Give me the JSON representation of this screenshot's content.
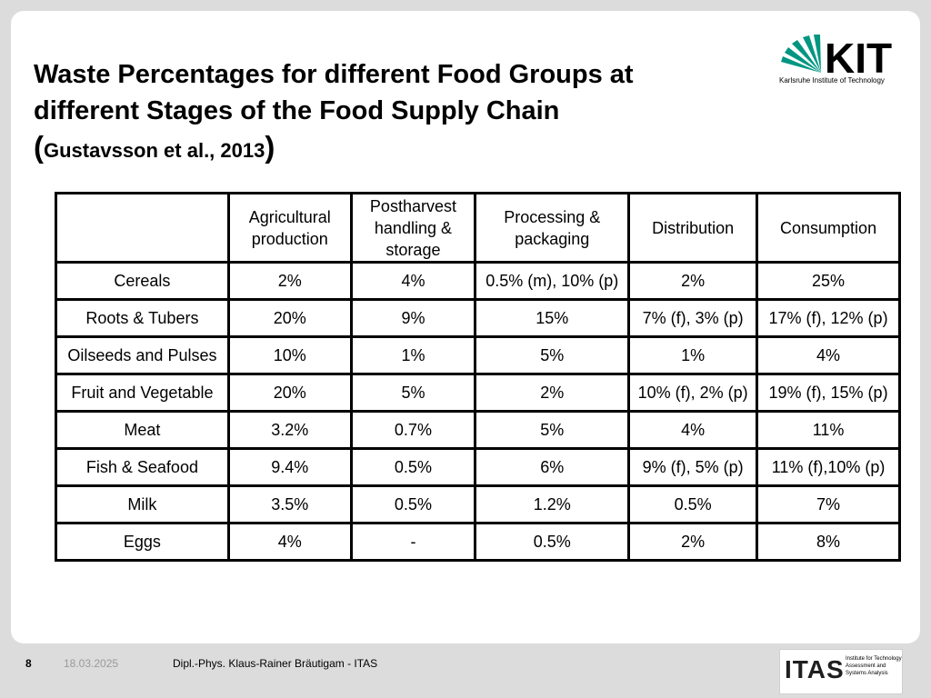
{
  "title": {
    "line1": "Waste Percentages for different Food Groups at",
    "line2": "different Stages of the Food Supply Chain",
    "citation_open": "(",
    "citation": "Gustavsson et al., 2013",
    "citation_close": ")"
  },
  "logo_kit": {
    "wordmark": "KIT",
    "subtitle": "Karlsruhe Institute of Technology",
    "accent_color": "#009682"
  },
  "table": {
    "headers": [
      "",
      "Agricultural production",
      "Postharvest handling & storage",
      "Processing & packaging",
      "Distribution",
      "Consumption"
    ],
    "rows": [
      [
        "Cereals",
        "2%",
        "4%",
        "0.5% (m), 10% (p)",
        "2%",
        "25%"
      ],
      [
        "Roots & Tubers",
        "20%",
        "9%",
        "15%",
        "7% (f), 3% (p)",
        "17% (f), 12% (p)"
      ],
      [
        "Oilseeds and Pulses",
        "10%",
        "1%",
        "5%",
        "1%",
        "4%"
      ],
      [
        "Fruit and Vegetable",
        "20%",
        "5%",
        "2%",
        "10% (f), 2% (p)",
        "19% (f), 15% (p)"
      ],
      [
        "Meat",
        "3.2%",
        "0.7%",
        "5%",
        "4%",
        "11%"
      ],
      [
        "Fish & Seafood",
        "9.4%",
        "0.5%",
        "6%",
        "9% (f), 5% (p)",
        "11% (f),10% (p)"
      ],
      [
        "Milk",
        "3.5%",
        "0.5%",
        "1.2%",
        "0.5%",
        "7%"
      ],
      [
        "Eggs",
        "4%",
        "-",
        "0.5%",
        "2%",
        "8%"
      ]
    ]
  },
  "footer": {
    "page_number": "8",
    "date": "18.03.2025",
    "author": "Dipl.-Phys. Klaus-Rainer Bräutigam - ITAS"
  },
  "logo_itas": {
    "wordmark": "ITAS",
    "subtitle": "Institute for Technology Assessment and Systems Analysis"
  }
}
